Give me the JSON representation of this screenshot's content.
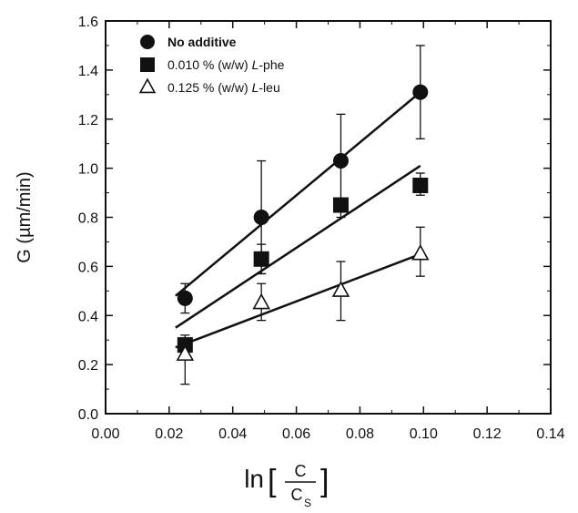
{
  "chart_data": {
    "type": "scatter",
    "title": "",
    "xlabel": {
      "prefix": "ln",
      "numerator": "C",
      "denominator": "C",
      "subscript": "S",
      "bracket_open": "[",
      "bracket_close": "]"
    },
    "ylabel": "G (µm/min)",
    "xlim": [
      0.0,
      0.14
    ],
    "ylim": [
      0.0,
      1.6
    ],
    "x_ticks": [
      "0.00",
      "0.02",
      "0.04",
      "0.06",
      "0.08",
      "0.10",
      "0.12",
      "0.14"
    ],
    "y_ticks": [
      "0.0",
      "0.2",
      "0.4",
      "0.6",
      "0.8",
      "1.0",
      "1.2",
      "1.4",
      "1.6"
    ],
    "grid": false,
    "legend_position": "top-left",
    "series": [
      {
        "name": "No additive",
        "marker": "circle-filled",
        "x": [
          0.025,
          0.049,
          0.074,
          0.099
        ],
        "y": [
          0.47,
          0.8,
          1.03,
          1.31
        ],
        "err_upper": [
          0.53,
          1.03,
          1.22,
          1.5
        ],
        "err_lower": [
          0.41,
          0.57,
          0.84,
          1.12
        ],
        "fit": [
          [
            0.022,
            0.48
          ],
          [
            0.099,
            1.31
          ]
        ]
      },
      {
        "name_parts": [
          "0.010 % (w/w) ",
          "L",
          "-phe"
        ],
        "marker": "square-filled",
        "x": [
          0.025,
          0.049,
          0.074,
          0.099
        ],
        "y": [
          0.28,
          0.63,
          0.85,
          0.93
        ],
        "err_upper": [
          0.3,
          0.69,
          0.87,
          0.98
        ],
        "err_lower": [
          0.26,
          0.57,
          0.8,
          0.89
        ],
        "fit": [
          [
            0.022,
            0.35
          ],
          [
            0.099,
            1.01
          ]
        ]
      },
      {
        "name_parts": [
          "0.125 % (w/w) ",
          "L",
          "-leu"
        ],
        "marker": "triangle-open",
        "x": [
          0.025,
          0.049,
          0.074,
          0.099
        ],
        "y": [
          0.24,
          0.45,
          0.5,
          0.65
        ],
        "err_upper": [
          0.32,
          0.53,
          0.62,
          0.76
        ],
        "err_lower": [
          0.12,
          0.38,
          0.38,
          0.56
        ],
        "fit": [
          [
            0.022,
            0.27
          ],
          [
            0.099,
            0.65
          ]
        ]
      }
    ]
  }
}
